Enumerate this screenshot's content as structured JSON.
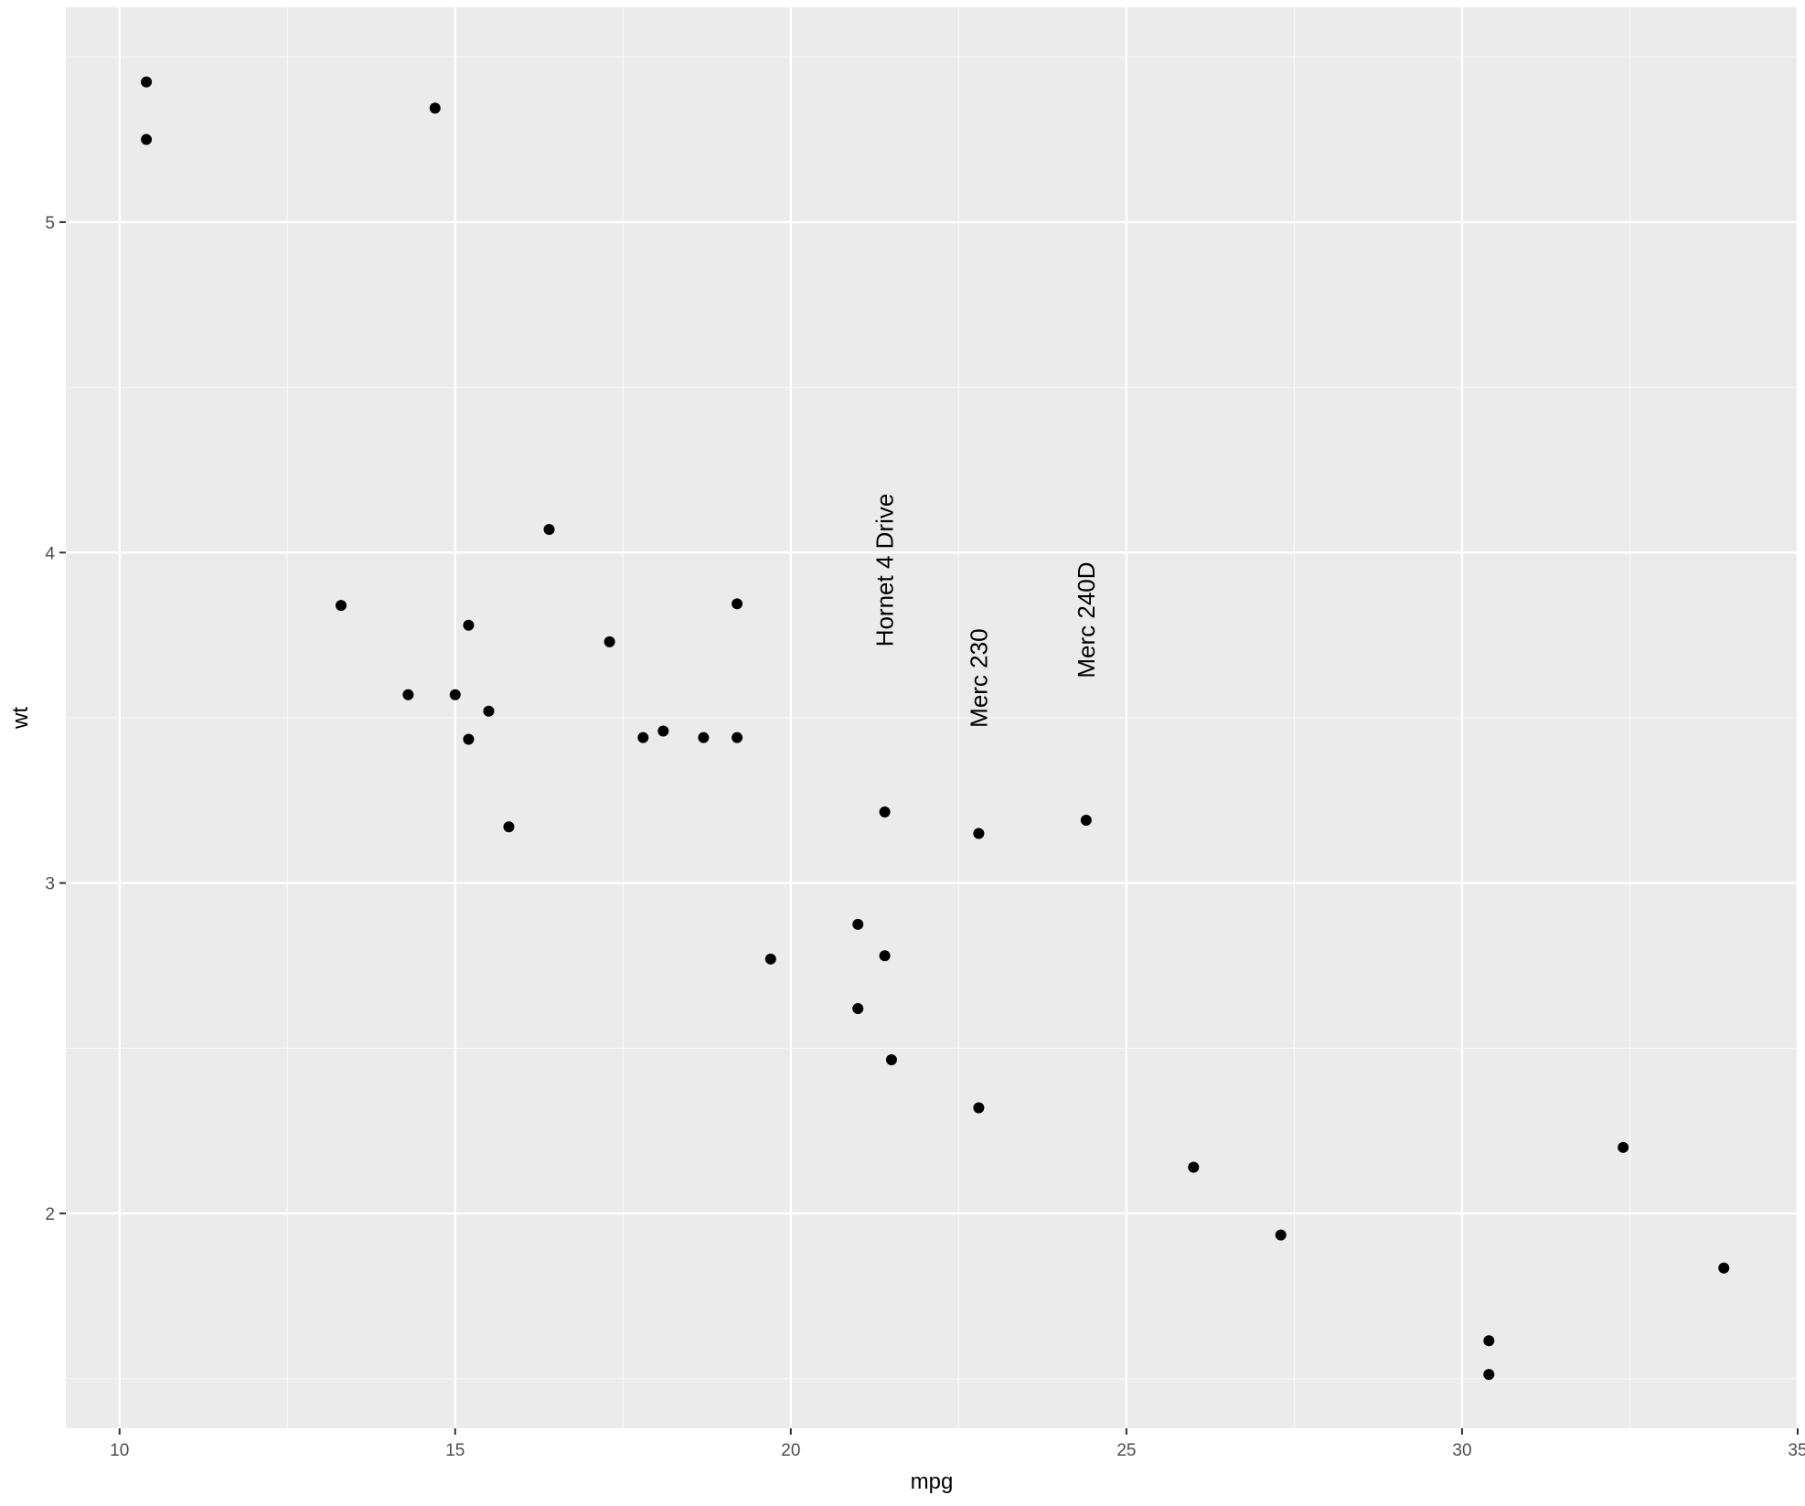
{
  "chart_data": {
    "type": "scatter",
    "xlabel": "mpg",
    "ylabel": "wt",
    "xlim": [
      9.2,
      35.0
    ],
    "ylim": [
      1.35,
      5.65
    ],
    "x_ticks": [
      10,
      15,
      20,
      25,
      30,
      35
    ],
    "x_tick_labels": [
      "10",
      "15",
      "20",
      "25",
      "30",
      "35"
    ],
    "y_ticks": [
      2,
      3,
      4,
      5
    ],
    "y_tick_labels": [
      "2",
      "3",
      "4",
      "5"
    ],
    "grid": true,
    "colors": {
      "panel_background": "#ebebeb",
      "grid_major": "#ffffff",
      "grid_minor": "#f7f7f7",
      "point": "#000000",
      "tick_label": "#4d4d4d",
      "axis_tick": "#333333"
    },
    "points": [
      {
        "x": 10.4,
        "y": 5.424
      },
      {
        "x": 10.4,
        "y": 5.25
      },
      {
        "x": 14.7,
        "y": 5.345
      },
      {
        "x": 16.4,
        "y": 4.07
      },
      {
        "x": 13.3,
        "y": 3.84
      },
      {
        "x": 19.2,
        "y": 3.845
      },
      {
        "x": 15.2,
        "y": 3.78
      },
      {
        "x": 17.3,
        "y": 3.73
      },
      {
        "x": 14.3,
        "y": 3.57
      },
      {
        "x": 15.0,
        "y": 3.57
      },
      {
        "x": 15.5,
        "y": 3.52
      },
      {
        "x": 15.2,
        "y": 3.435
      },
      {
        "x": 17.8,
        "y": 3.44
      },
      {
        "x": 18.1,
        "y": 3.46
      },
      {
        "x": 18.7,
        "y": 3.44
      },
      {
        "x": 19.2,
        "y": 3.44
      },
      {
        "x": 15.8,
        "y": 3.17
      },
      {
        "x": 21.4,
        "y": 3.215
      },
      {
        "x": 22.8,
        "y": 3.15
      },
      {
        "x": 24.4,
        "y": 3.19
      },
      {
        "x": 21.0,
        "y": 2.875
      },
      {
        "x": 21.4,
        "y": 2.78
      },
      {
        "x": 19.7,
        "y": 2.77
      },
      {
        "x": 21.0,
        "y": 2.62
      },
      {
        "x": 21.5,
        "y": 2.465
      },
      {
        "x": 22.8,
        "y": 2.32
      },
      {
        "x": 26.0,
        "y": 2.14
      },
      {
        "x": 32.4,
        "y": 2.2
      },
      {
        "x": 27.3,
        "y": 1.935
      },
      {
        "x": 33.9,
        "y": 1.835
      },
      {
        "x": 30.4,
        "y": 1.615
      },
      {
        "x": 30.4,
        "y": 1.513
      }
    ],
    "annotations": [
      {
        "label": "Hornet 4 Drive",
        "x": 21.4,
        "y": 3.715,
        "angle": 90
      },
      {
        "label": "Merc 230",
        "x": 22.8,
        "y": 3.47,
        "angle": 90
      },
      {
        "label": "Merc 240D",
        "x": 24.4,
        "y": 3.62,
        "angle": 90
      }
    ]
  }
}
